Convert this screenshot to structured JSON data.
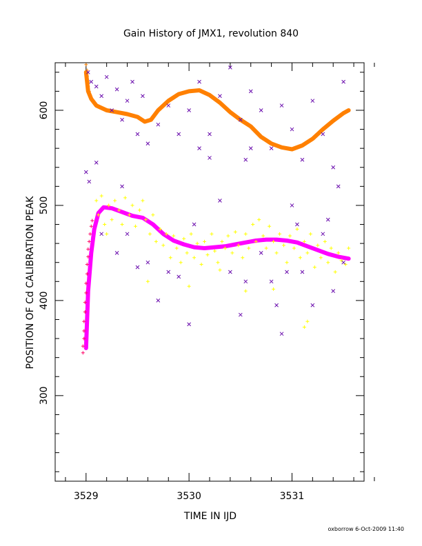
{
  "chart_data": {
    "type": "scatter",
    "title": "Gain History of JMX1, revolution 840",
    "xlabel": "TIME IN IJD",
    "ylabel": "POSITION OF Cd CALIBRATION PEAK",
    "footer": "oxborrow  6-Oct-2009 11:40",
    "xlim": [
      3528.7,
      3531.7
    ],
    "ylim": [
      210,
      650
    ],
    "x_ticks": [
      3529,
      3530,
      3531
    ],
    "x_tick_labels": [
      "3529",
      "3530",
      "3531"
    ],
    "y_ticks": [
      300,
      400,
      500,
      600
    ],
    "y_tick_labels": [
      "300",
      "400",
      "500",
      "600"
    ],
    "grid": false,
    "series": [
      {
        "color": "#ff8000",
        "style": "thick-line",
        "points": [
          [
            3529.0,
            640
          ],
          [
            3529.02,
            620
          ],
          [
            3529.05,
            612
          ],
          [
            3529.1,
            605
          ],
          [
            3529.2,
            600
          ],
          [
            3529.3,
            598
          ],
          [
            3529.4,
            596
          ],
          [
            3529.5,
            593
          ],
          [
            3529.57,
            588
          ],
          [
            3529.63,
            590
          ],
          [
            3529.7,
            600
          ],
          [
            3529.8,
            610
          ],
          [
            3529.9,
            617
          ],
          [
            3530.0,
            620
          ],
          [
            3530.1,
            621
          ],
          [
            3530.2,
            616
          ],
          [
            3530.3,
            608
          ],
          [
            3530.4,
            598
          ],
          [
            3530.5,
            590
          ],
          [
            3530.6,
            583
          ],
          [
            3530.7,
            572
          ],
          [
            3530.8,
            565
          ],
          [
            3530.9,
            561
          ],
          [
            3531.0,
            559
          ],
          [
            3531.1,
            563
          ],
          [
            3531.2,
            570
          ],
          [
            3531.3,
            580
          ],
          [
            3531.4,
            589
          ],
          [
            3531.5,
            597
          ],
          [
            3531.55,
            600
          ]
        ]
      },
      {
        "color": "#ff00ff",
        "style": "thick-line",
        "points": [
          [
            3529.0,
            350
          ],
          [
            3529.02,
            410
          ],
          [
            3529.05,
            450
          ],
          [
            3529.08,
            475
          ],
          [
            3529.12,
            492
          ],
          [
            3529.17,
            498
          ],
          [
            3529.25,
            497
          ],
          [
            3529.35,
            493
          ],
          [
            3529.45,
            489
          ],
          [
            3529.55,
            487
          ],
          [
            3529.65,
            480
          ],
          [
            3529.75,
            470
          ],
          [
            3529.85,
            463
          ],
          [
            3529.95,
            459
          ],
          [
            3530.05,
            456
          ],
          [
            3530.15,
            455
          ],
          [
            3530.25,
            456
          ],
          [
            3530.35,
            457
          ],
          [
            3530.45,
            459
          ],
          [
            3530.55,
            461
          ],
          [
            3530.65,
            463
          ],
          [
            3530.75,
            464
          ],
          [
            3530.85,
            464
          ],
          [
            3530.95,
            463
          ],
          [
            3531.05,
            461
          ],
          [
            3531.15,
            457
          ],
          [
            3531.25,
            453
          ],
          [
            3531.35,
            449
          ],
          [
            3531.45,
            446
          ],
          [
            3531.55,
            444
          ]
        ]
      },
      {
        "color": "#ff0066",
        "style": "plus",
        "points": [
          [
            3528.97,
            345
          ],
          [
            3528.97,
            352
          ],
          [
            3528.98,
            360
          ],
          [
            3528.98,
            368
          ],
          [
            3528.98,
            378
          ],
          [
            3528.99,
            388
          ],
          [
            3528.99,
            398
          ],
          [
            3529.0,
            408
          ],
          [
            3529.0,
            418
          ],
          [
            3529.01,
            428
          ],
          [
            3529.01,
            438
          ],
          [
            3529.02,
            446
          ],
          [
            3529.02,
            454
          ],
          [
            3529.03,
            462
          ],
          [
            3529.04,
            470
          ],
          [
            3529.05,
            478
          ],
          [
            3529.06,
            484
          ]
        ]
      },
      {
        "color": "#ff8000",
        "style": "plus",
        "points": [
          [
            3529.0,
            648
          ],
          [
            3529.01,
            642
          ],
          [
            3529.01,
            636
          ],
          [
            3529.02,
            630
          ],
          [
            3529.02,
            625
          ],
          [
            3529.03,
            620
          ],
          [
            3529.04,
            616
          ]
        ]
      },
      {
        "color": "#ffff00",
        "style": "plus",
        "points": [
          [
            3529.1,
            505
          ],
          [
            3529.12,
            490
          ],
          [
            3529.15,
            510
          ],
          [
            3529.18,
            480
          ],
          [
            3529.22,
            500
          ],
          [
            3529.25,
            485
          ],
          [
            3529.28,
            505
          ],
          [
            3529.32,
            495
          ],
          [
            3529.35,
            480
          ],
          [
            3529.38,
            508
          ],
          [
            3529.42,
            490
          ],
          [
            3529.45,
            500
          ],
          [
            3529.48,
            478
          ],
          [
            3529.52,
            495
          ],
          [
            3529.55,
            505
          ],
          [
            3529.58,
            485
          ],
          [
            3529.62,
            470
          ],
          [
            3529.65,
            490
          ],
          [
            3529.68,
            462
          ],
          [
            3529.72,
            475
          ],
          [
            3529.75,
            458
          ],
          [
            3529.78,
            470
          ],
          [
            3529.82,
            445
          ],
          [
            3529.85,
            468
          ],
          [
            3529.88,
            455
          ],
          [
            3529.92,
            440
          ],
          [
            3529.95,
            465
          ],
          [
            3529.98,
            450
          ],
          [
            3530.02,
            470
          ],
          [
            3530.05,
            445
          ],
          [
            3530.08,
            460
          ],
          [
            3530.12,
            438
          ],
          [
            3530.15,
            462
          ],
          [
            3530.18,
            448
          ],
          [
            3530.22,
            470
          ],
          [
            3530.25,
            452
          ],
          [
            3530.28,
            440
          ],
          [
            3530.32,
            462
          ],
          [
            3530.35,
            455
          ],
          [
            3530.38,
            468
          ],
          [
            3530.42,
            450
          ],
          [
            3530.45,
            472
          ],
          [
            3530.48,
            458
          ],
          [
            3530.52,
            445
          ],
          [
            3530.55,
            470
          ],
          [
            3530.58,
            455
          ],
          [
            3530.62,
            480
          ],
          [
            3530.65,
            462
          ],
          [
            3530.68,
            485
          ],
          [
            3530.72,
            468
          ],
          [
            3530.75,
            455
          ],
          [
            3530.78,
            478
          ],
          [
            3530.82,
            462
          ],
          [
            3530.85,
            450
          ],
          [
            3530.88,
            470
          ],
          [
            3530.92,
            458
          ],
          [
            3530.95,
            440
          ],
          [
            3530.98,
            468
          ],
          [
            3531.02,
            455
          ],
          [
            3531.05,
            475
          ],
          [
            3531.08,
            445
          ],
          [
            3531.12,
            462
          ],
          [
            3531.15,
            450
          ],
          [
            3531.18,
            470
          ],
          [
            3531.22,
            435
          ],
          [
            3531.25,
            458
          ],
          [
            3531.28,
            445
          ],
          [
            3531.32,
            462
          ],
          [
            3531.35,
            440
          ],
          [
            3531.38,
            455
          ],
          [
            3531.42,
            430
          ],
          [
            3531.45,
            450
          ],
          [
            3531.48,
            442
          ],
          [
            3531.52,
            438
          ],
          [
            3531.55,
            455
          ],
          [
            3530.0,
            415
          ],
          [
            3530.3,
            432
          ],
          [
            3530.55,
            410
          ],
          [
            3530.82,
            412
          ],
          [
            3531.15,
            378
          ],
          [
            3531.12,
            372
          ],
          [
            3529.6,
            420
          ],
          [
            3529.2,
            470
          ]
        ]
      },
      {
        "color": "#6a0dad",
        "style": "cross",
        "points": [
          [
            3529.02,
            640
          ],
          [
            3529.05,
            630
          ],
          [
            3529.1,
            625
          ],
          [
            3529.15,
            615
          ],
          [
            3529.2,
            635
          ],
          [
            3529.25,
            600
          ],
          [
            3529.3,
            622
          ],
          [
            3529.35,
            590
          ],
          [
            3529.4,
            610
          ],
          [
            3529.45,
            630
          ],
          [
            3529.5,
            575
          ],
          [
            3529.55,
            615
          ],
          [
            3529.6,
            565
          ],
          [
            3529.7,
            585
          ],
          [
            3529.8,
            605
          ],
          [
            3529.9,
            575
          ],
          [
            3530.0,
            600
          ],
          [
            3530.1,
            630
          ],
          [
            3530.2,
            575
          ],
          [
            3530.3,
            615
          ],
          [
            3530.4,
            645
          ],
          [
            3530.5,
            590
          ],
          [
            3530.55,
            548
          ],
          [
            3530.6,
            620
          ],
          [
            3530.7,
            600
          ],
          [
            3530.8,
            560
          ],
          [
            3530.9,
            605
          ],
          [
            3531.0,
            580
          ],
          [
            3531.1,
            548
          ],
          [
            3531.2,
            610
          ],
          [
            3531.3,
            575
          ],
          [
            3531.4,
            540
          ],
          [
            3531.45,
            520
          ],
          [
            3531.5,
            630
          ],
          [
            3529.0,
            535
          ],
          [
            3529.03,
            525
          ],
          [
            3529.1,
            545
          ],
          [
            3529.15,
            470
          ],
          [
            3529.3,
            450
          ],
          [
            3529.35,
            520
          ],
          [
            3529.4,
            470
          ],
          [
            3529.5,
            435
          ],
          [
            3529.6,
            440
          ],
          [
            3529.7,
            400
          ],
          [
            3529.8,
            430
          ],
          [
            3529.9,
            425
          ],
          [
            3530.0,
            375
          ],
          [
            3530.05,
            480
          ],
          [
            3530.1,
            560
          ],
          [
            3530.2,
            550
          ],
          [
            3530.3,
            505
          ],
          [
            3530.4,
            430
          ],
          [
            3530.5,
            385
          ],
          [
            3530.55,
            420
          ],
          [
            3530.6,
            560
          ],
          [
            3530.7,
            450
          ],
          [
            3530.8,
            420
          ],
          [
            3530.85,
            395
          ],
          [
            3530.9,
            365
          ],
          [
            3530.95,
            430
          ],
          [
            3531.0,
            500
          ],
          [
            3531.05,
            480
          ],
          [
            3531.1,
            430
          ],
          [
            3531.2,
            395
          ],
          [
            3531.3,
            470
          ],
          [
            3531.35,
            485
          ],
          [
            3531.4,
            410
          ],
          [
            3531.5,
            440
          ]
        ]
      }
    ]
  }
}
